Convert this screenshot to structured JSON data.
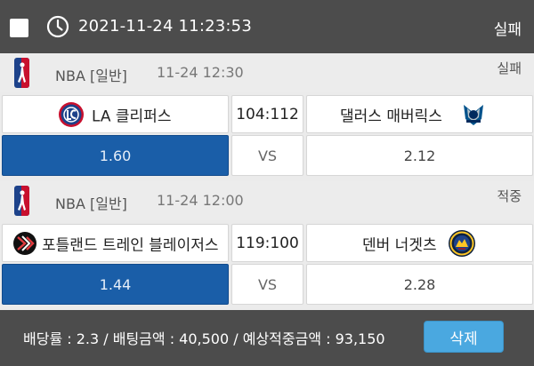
{
  "header": {
    "datetime": "2021-11-24 11:23:53",
    "status": "실패"
  },
  "games": [
    {
      "league": "NBA [일반]",
      "time": "11-24 12:30",
      "result": "실패",
      "home": {
        "name": "LA 클리퍼스",
        "logo": "clippers-logo-icon"
      },
      "score": "104:112",
      "away": {
        "name": "댈러스 매버릭스",
        "logo": "mavericks-logo-icon"
      },
      "odds": {
        "home": "1.60",
        "middle": "VS",
        "away": "2.12"
      },
      "selected": "home"
    },
    {
      "league": "NBA [일반]",
      "time": "11-24 12:00",
      "result": "적중",
      "home": {
        "name": "포틀랜드 트레인 블레이저스",
        "logo": "blazers-logo-icon"
      },
      "score": "119:100",
      "away": {
        "name": "덴버 너겟츠",
        "logo": "nuggets-logo-icon"
      },
      "odds": {
        "home": "1.44",
        "middle": "VS",
        "away": "2.28"
      },
      "selected": "home"
    }
  ],
  "footer": {
    "summary": "배당률 : 2.3 / 배팅금액 : 40,500 / 예상적중금액 : 93,150",
    "delete_label": "삭제"
  },
  "colors": {
    "header_bg": "#4c4c4c",
    "selected_odds": "#1a5ea8",
    "delete_button": "#4aa8e0"
  }
}
